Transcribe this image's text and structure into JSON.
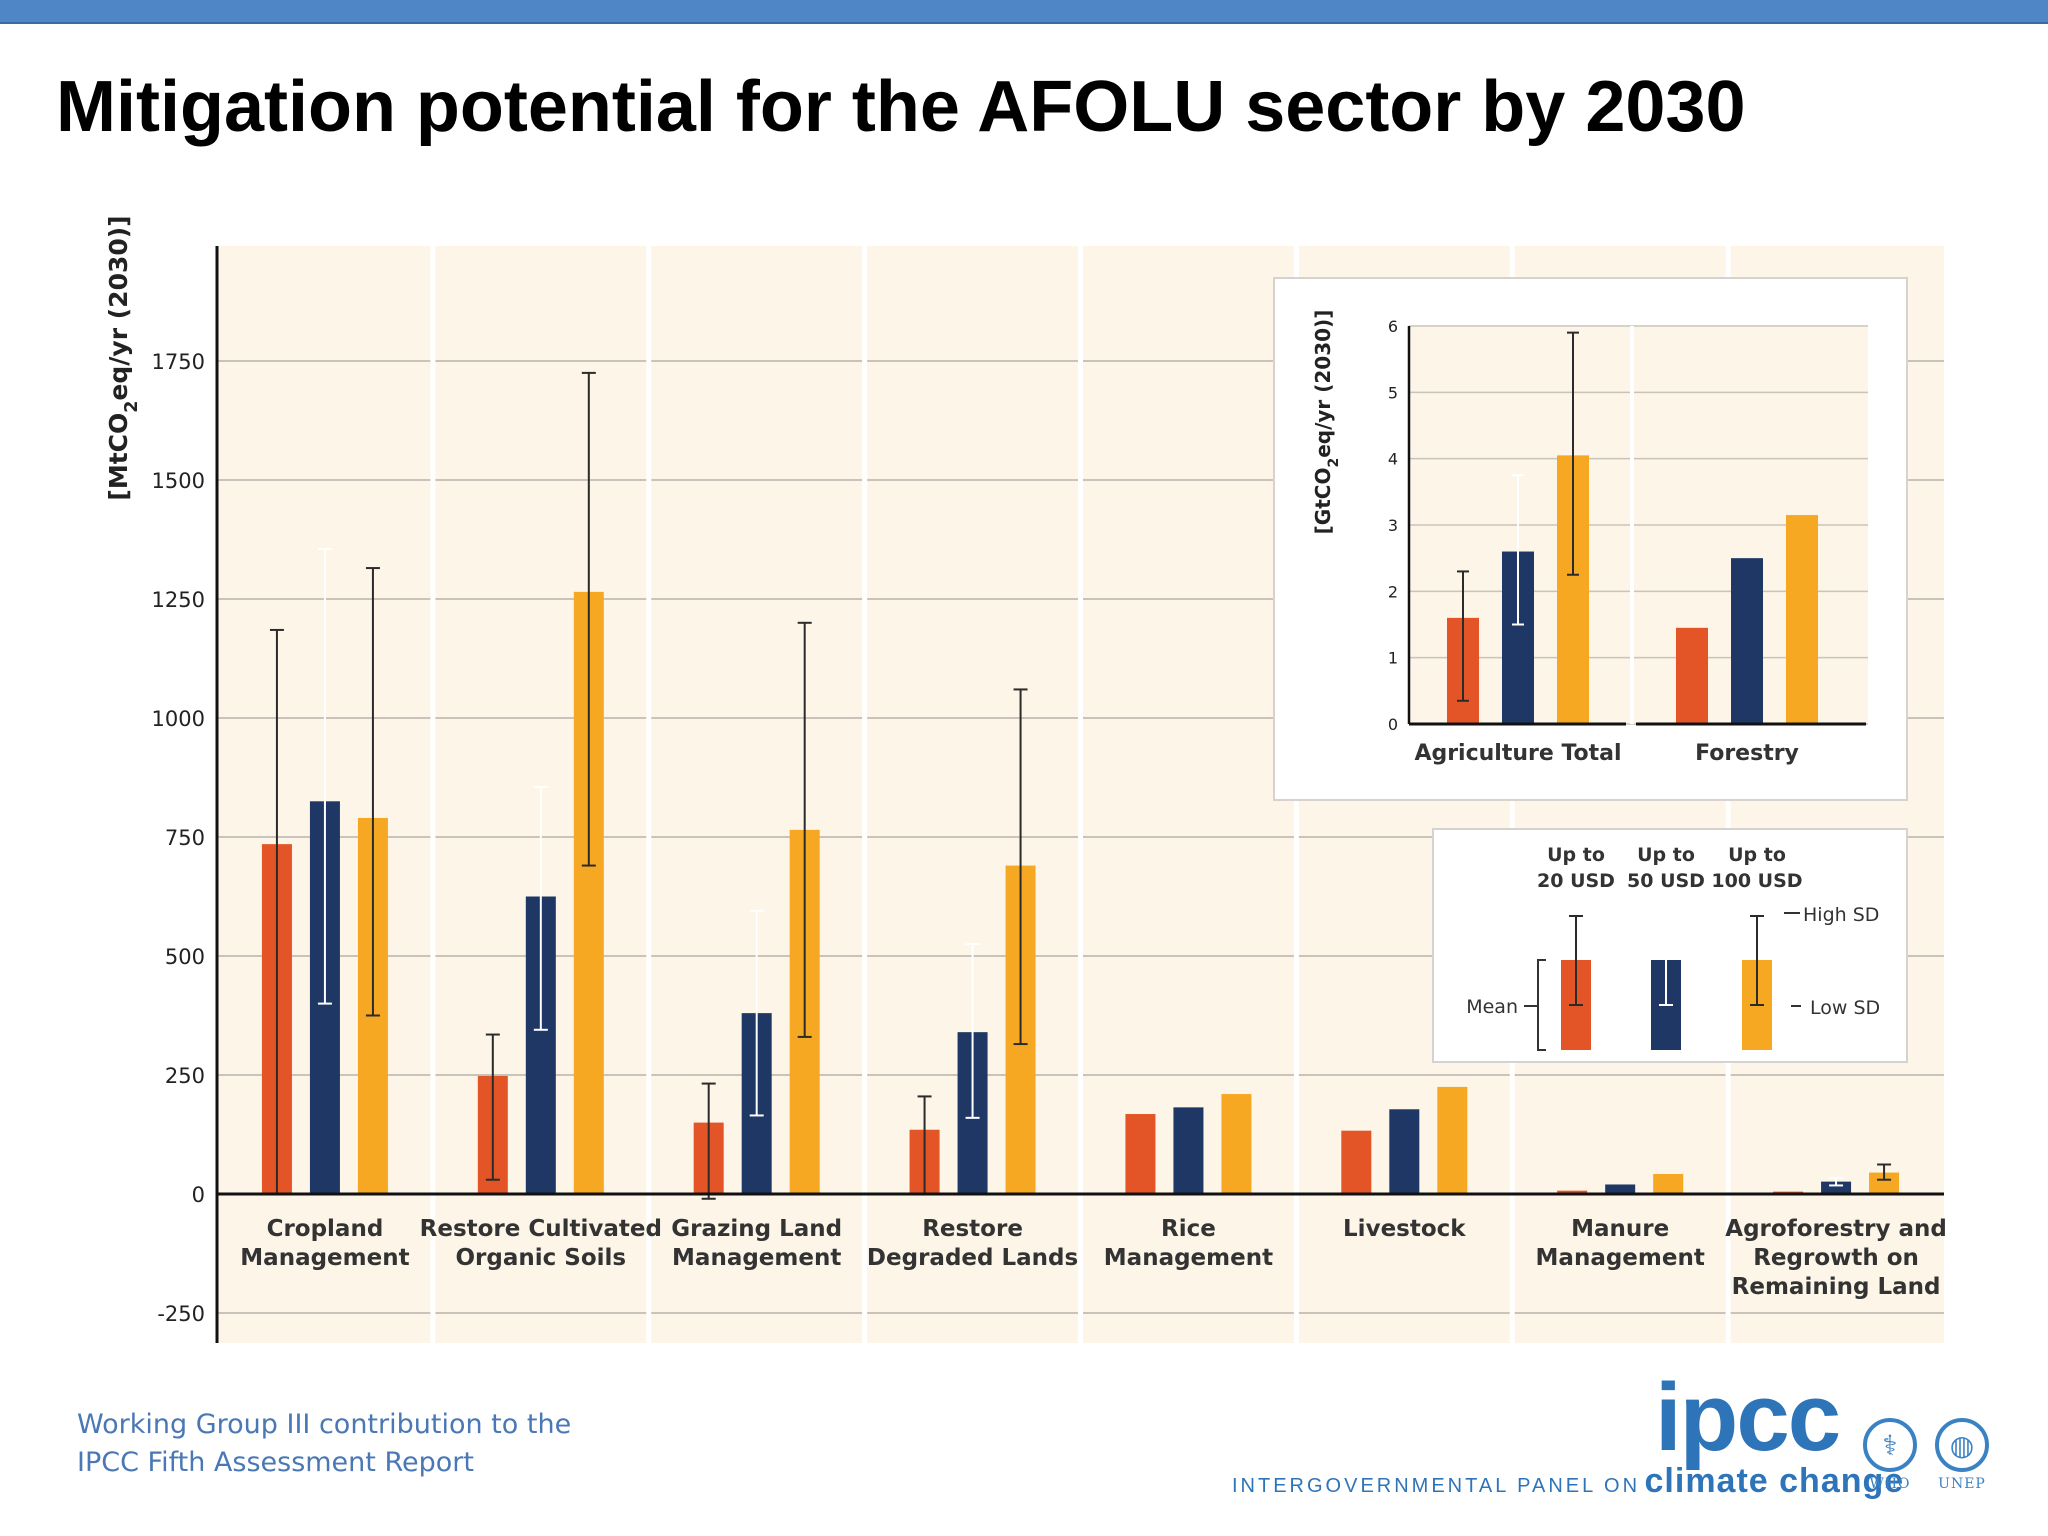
{
  "slide": {
    "title": "Mitigation potential for the AFOLU sector by 2030",
    "footer_line1": "Working Group III contribution to the",
    "footer_line2": "IPCC Fifth Assessment Report",
    "logo_word": "ipcc",
    "logo_org_small": "INTERGOVERNMENTAL PANEL ON",
    "logo_org_big": "climate change",
    "agency1": "WHO",
    "agency2": "UNEP"
  },
  "colors": {
    "red": "#e35526",
    "navy": "#1e3764",
    "orange": "#f7a823",
    "plot_bg": "#fcf5e8",
    "grid": "#c9c4bb"
  },
  "chart_data": [
    {
      "type": "bar",
      "ylabel": "[MtCO2eq/yr (2030)]",
      "ylim": [
        -300,
        2000
      ],
      "yticks": [
        -250,
        0,
        250,
        500,
        750,
        1000,
        1250,
        1500,
        1750
      ],
      "categories": [
        [
          "Cropland",
          "Management"
        ],
        [
          "Restore Cultivated",
          "Organic Soils"
        ],
        [
          "Grazing Land",
          "Management"
        ],
        [
          "Restore",
          "Degraded Lands"
        ],
        [
          "Rice",
          "Management"
        ],
        [
          "Livestock"
        ],
        [
          "Manure",
          "Management"
        ],
        [
          "Agroforestry and",
          "Regrowth on",
          "Remaining Land"
        ]
      ],
      "series": [
        {
          "name": "Up to 20 USD",
          "values": [
            735,
            248,
            150,
            135,
            168,
            133,
            7,
            5
          ],
          "sd_low": [
            0,
            30,
            -10,
            0,
            null,
            null,
            null,
            null
          ],
          "sd_high": [
            1185,
            335,
            232,
            205,
            null,
            null,
            null,
            null
          ]
        },
        {
          "name": "Up to 50 USD",
          "values": [
            825,
            625,
            380,
            340,
            182,
            178,
            20,
            26
          ],
          "sd_low": [
            400,
            345,
            165,
            160,
            null,
            null,
            null,
            18
          ],
          "sd_high": [
            1355,
            855,
            595,
            525,
            null,
            null,
            null,
            34
          ]
        },
        {
          "name": "Up to 100 USD",
          "values": [
            790,
            1265,
            765,
            690,
            210,
            225,
            42,
            45
          ],
          "sd_low": [
            375,
            690,
            330,
            315,
            null,
            null,
            null,
            30
          ],
          "sd_high": [
            1315,
            1725,
            1200,
            1060,
            null,
            null,
            null,
            62
          ]
        }
      ]
    },
    {
      "type": "bar",
      "ylabel": "[GtCO2eq/yr (2030)]",
      "ylim": [
        0,
        6
      ],
      "yticks": [
        0,
        1,
        2,
        3,
        4,
        5,
        6
      ],
      "categories": [
        "Agriculture Total",
        "Forestry"
      ],
      "series": [
        {
          "name": "Up to 20 USD",
          "values": [
            1.6,
            1.45
          ],
          "sd_low": [
            0.35,
            null
          ],
          "sd_high": [
            2.3,
            null
          ]
        },
        {
          "name": "Up to 50 USD",
          "values": [
            2.6,
            2.5
          ],
          "sd_low": [
            1.5,
            null
          ],
          "sd_high": [
            3.75,
            null
          ]
        },
        {
          "name": "Up to 100 USD",
          "values": [
            4.05,
            3.15
          ],
          "sd_low": [
            2.25,
            null
          ],
          "sd_high": [
            5.9,
            null
          ]
        }
      ]
    }
  ],
  "legend": {
    "headers": [
      [
        "Up to",
        "20 USD"
      ],
      [
        "Up to",
        "50 USD"
      ],
      [
        "Up to",
        "100 USD"
      ]
    ],
    "mean_label": "Mean",
    "high_label": "High SD",
    "low_label": "Low SD"
  }
}
